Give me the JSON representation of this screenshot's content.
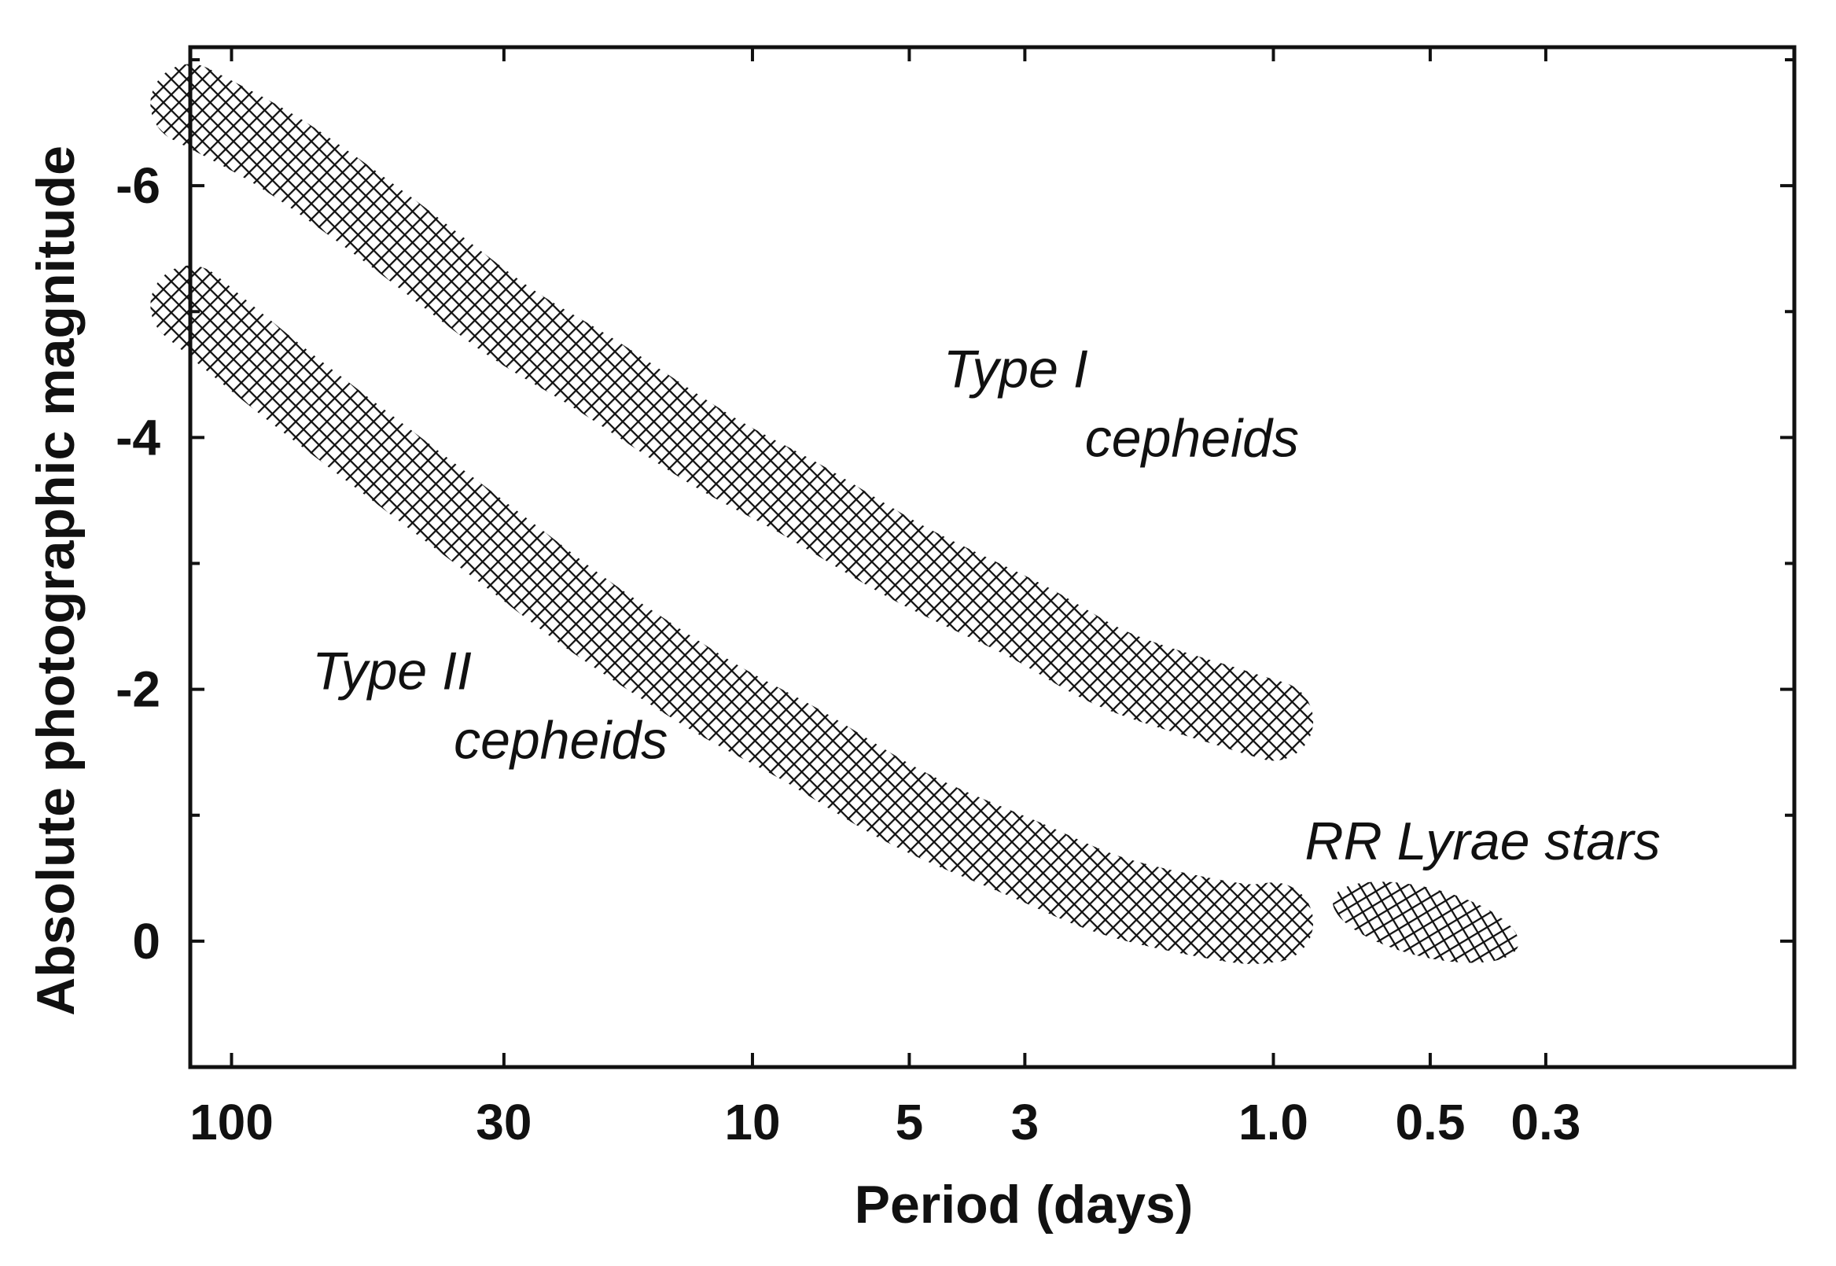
{
  "chart_data": {
    "type": "scatter",
    "title": "",
    "xlabel": "Period (days)",
    "ylabel": "Absolute photographic magnitude",
    "x_scale": "log",
    "x_reversed": true,
    "xlim": [
      120,
      0.1
    ],
    "ylim": [
      1.0,
      -7.1
    ],
    "y_reversed": true,
    "grid": false,
    "x_ticks": [
      {
        "value": 100,
        "label": "100"
      },
      {
        "value": 30,
        "label": "30"
      },
      {
        "value": 10,
        "label": "10"
      },
      {
        "value": 5,
        "label": "5"
      },
      {
        "value": 3,
        "label": "3"
      },
      {
        "value": 1.0,
        "label": "1.0"
      },
      {
        "value": 0.5,
        "label": "0.5"
      },
      {
        "value": 0.3,
        "label": "0.3"
      }
    ],
    "y_ticks": [
      {
        "value": -6,
        "label": "-6"
      },
      {
        "value": -4,
        "label": "-4"
      },
      {
        "value": -2,
        "label": "-2"
      },
      {
        "value": 0,
        "label": "0"
      }
    ],
    "y_minor_ticks": [
      -7,
      -5,
      -3,
      -1
    ],
    "series": [
      {
        "name": "Type I cepheids",
        "label_lines": [
          "Type I",
          "cepheids"
        ],
        "shape": "band",
        "period": [
          120,
          80,
          50,
          30,
          20,
          12,
          8,
          5,
          3,
          2,
          1.2,
          1.0
        ],
        "magnitude": [
          -6.65,
          -6.25,
          -5.65,
          -4.95,
          -4.5,
          -3.9,
          -3.5,
          -3.0,
          -2.55,
          -2.15,
          -1.85,
          -1.75
        ],
        "band_width_mag": 0.55
      },
      {
        "name": "Type II cepheids",
        "label_lines": [
          "Type II",
          "cepheids"
        ],
        "shape": "band",
        "period": [
          120,
          80,
          50,
          30,
          20,
          12,
          8,
          5,
          3,
          2,
          1.2,
          1.0
        ],
        "magnitude": [
          -5.05,
          -4.45,
          -3.8,
          -3.1,
          -2.55,
          -1.95,
          -1.55,
          -1.05,
          -0.65,
          -0.35,
          -0.15,
          -0.15
        ],
        "band_width_mag": 0.55
      },
      {
        "name": "RR Lyrae stars",
        "label_lines": [
          "RR Lyrae stars"
        ],
        "shape": "ellipse",
        "period_center": 0.51,
        "magnitude_center": -0.15,
        "period_range": [
          0.8,
          0.3
        ],
        "magnitude_range": [
          0.5,
          -0.2
        ],
        "tilt_deg": 14
      }
    ],
    "annotations": [
      {
        "series": "Type I cepheids",
        "period": 4.3,
        "magnitude": -4.4
      },
      {
        "series": "Type II cepheids",
        "period": 70,
        "magnitude": -2.0
      },
      {
        "series": "RR Lyrae stars",
        "period": 0.87,
        "magnitude": -0.65
      }
    ]
  },
  "colors": {
    "ink": "#111111",
    "background": "#ffffff"
  }
}
